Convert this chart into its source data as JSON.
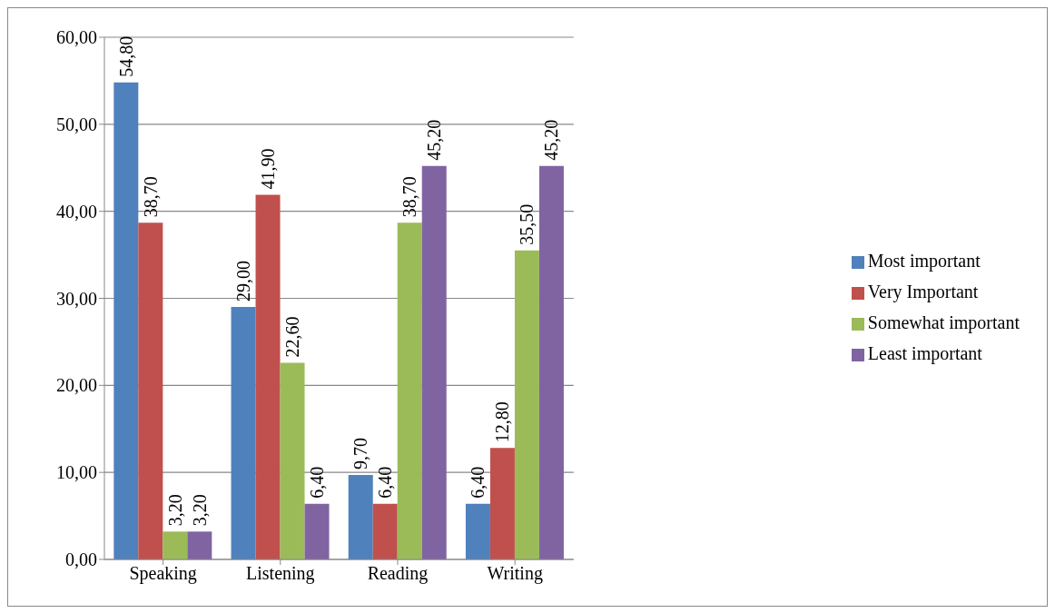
{
  "chart_data": {
    "type": "bar",
    "categories": [
      "Speaking",
      "Listening",
      "Reading",
      "Writing"
    ],
    "series": [
      {
        "name": "Most important",
        "color": "#4f81bd",
        "values": [
          54.8,
          29.0,
          9.7,
          6.4
        ],
        "value_labels": [
          "54,80",
          "29,00",
          "9,70",
          "6,40"
        ]
      },
      {
        "name": "Very Important",
        "color": "#c0504d",
        "values": [
          38.7,
          41.9,
          6.4,
          12.8
        ],
        "value_labels": [
          "38,70",
          "41,90",
          "6,40",
          "12,80"
        ]
      },
      {
        "name": "Somewhat important",
        "color": "#9bbb59",
        "values": [
          3.2,
          22.6,
          38.7,
          35.5
        ],
        "value_labels": [
          "3,20",
          "22,60",
          "38,70",
          "35,50"
        ]
      },
      {
        "name": "Least important",
        "color": "#8064a2",
        "values": [
          3.2,
          6.4,
          45.2,
          45.2
        ],
        "value_labels": [
          "3,20",
          "6,40",
          "45,20",
          "45,20"
        ]
      }
    ],
    "ylim": [
      0,
      60
    ],
    "yticks": [
      {
        "value": 0,
        "label": "0,00"
      },
      {
        "value": 10,
        "label": "10,00"
      },
      {
        "value": 20,
        "label": "20,00"
      },
      {
        "value": 30,
        "label": "30,00"
      },
      {
        "value": 40,
        "label": "40,00"
      },
      {
        "value": 50,
        "label": "50,00"
      },
      {
        "value": 60,
        "label": "60,00"
      }
    ],
    "grid": "y",
    "legend": "right"
  }
}
